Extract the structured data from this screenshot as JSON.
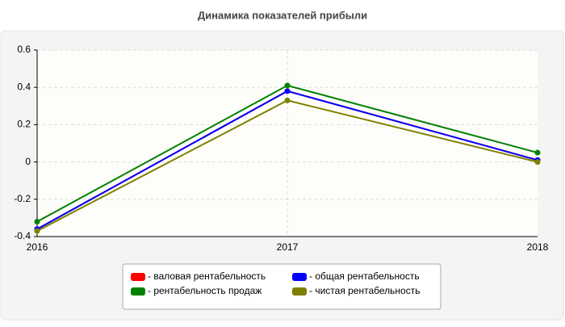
{
  "chart_data": {
    "type": "line",
    "title": "Динамика показателей прибыли",
    "categories": [
      "2016",
      "2017",
      "2018"
    ],
    "series": [
      {
        "name": "- валовая рентабельность",
        "color": "#ff0000",
        "values": [
          -0.36,
          0.38,
          0.01
        ]
      },
      {
        "name": "- общая рентабельность",
        "color": "#0000ff",
        "values": [
          -0.36,
          0.38,
          0.01
        ]
      },
      {
        "name": "- рентабельность продаж",
        "color": "#008000",
        "values": [
          -0.32,
          0.41,
          0.05
        ]
      },
      {
        "name": "- чистая рентабельность",
        "color": "#808000",
        "values": [
          -0.37,
          0.33,
          0.0
        ]
      }
    ],
    "ylim": [
      -0.4,
      0.6
    ],
    "yticks": [
      -0.4,
      -0.2,
      0,
      0.2,
      0.4,
      0.6
    ],
    "grid": true
  }
}
